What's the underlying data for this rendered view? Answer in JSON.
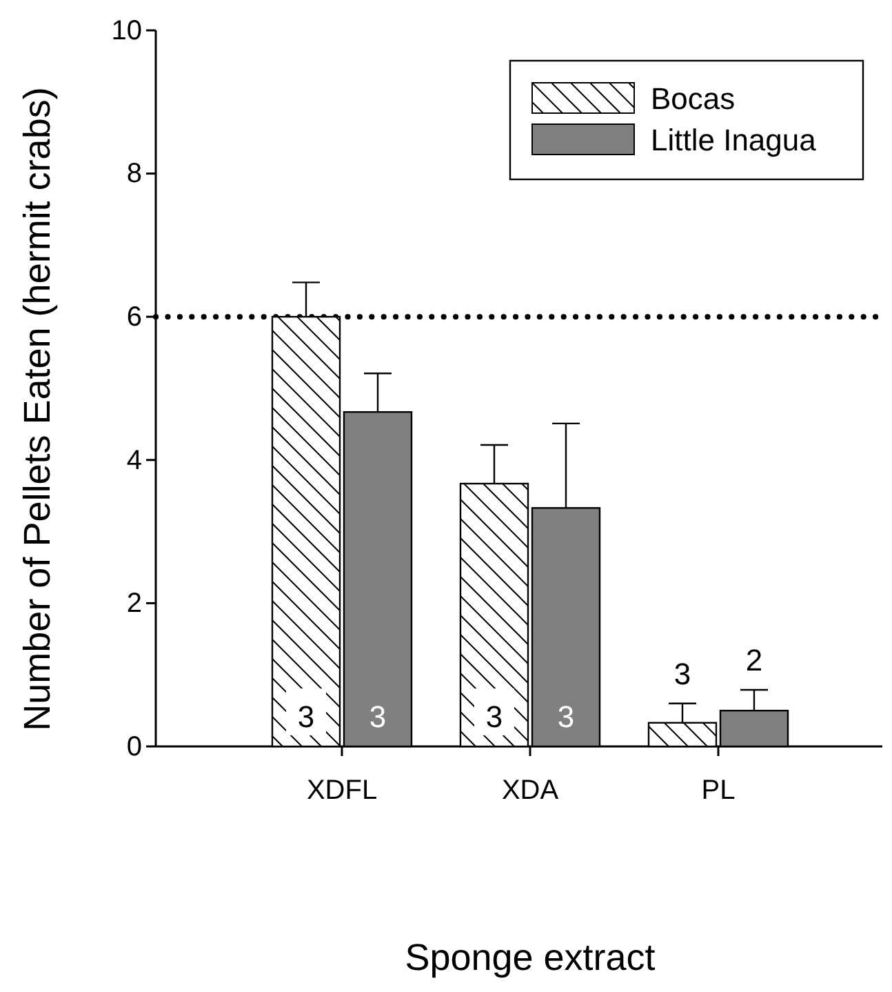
{
  "chart_data": {
    "type": "bar",
    "xlabel": "Sponge extract",
    "ylabel": "Number of Pellets Eaten (hermit crabs)",
    "categories": [
      "XDFL",
      "XDA",
      "PL"
    ],
    "series": [
      {
        "name": "Bocas",
        "color": "#000000",
        "values": [
          6.0,
          3.67,
          0.33
        ],
        "errors": [
          0.48,
          0.54,
          0.27
        ]
      },
      {
        "name": "Little Inagua",
        "color": "#808080",
        "values": [
          4.67,
          3.33,
          0.5
        ],
        "errors": [
          0.54,
          1.18,
          0.29
        ]
      }
    ],
    "annotations": [
      "3",
      "3",
      "3",
      "3",
      "3",
      "2"
    ],
    "ylim": [
      0,
      10
    ],
    "yticks": [
      0,
      2,
      4,
      6,
      8,
      10
    ],
    "grid": false,
    "legend": "top right",
    "ref_lines": [
      {
        "axis": "y",
        "value": 6,
        "line_style": "dotted"
      }
    ]
  }
}
